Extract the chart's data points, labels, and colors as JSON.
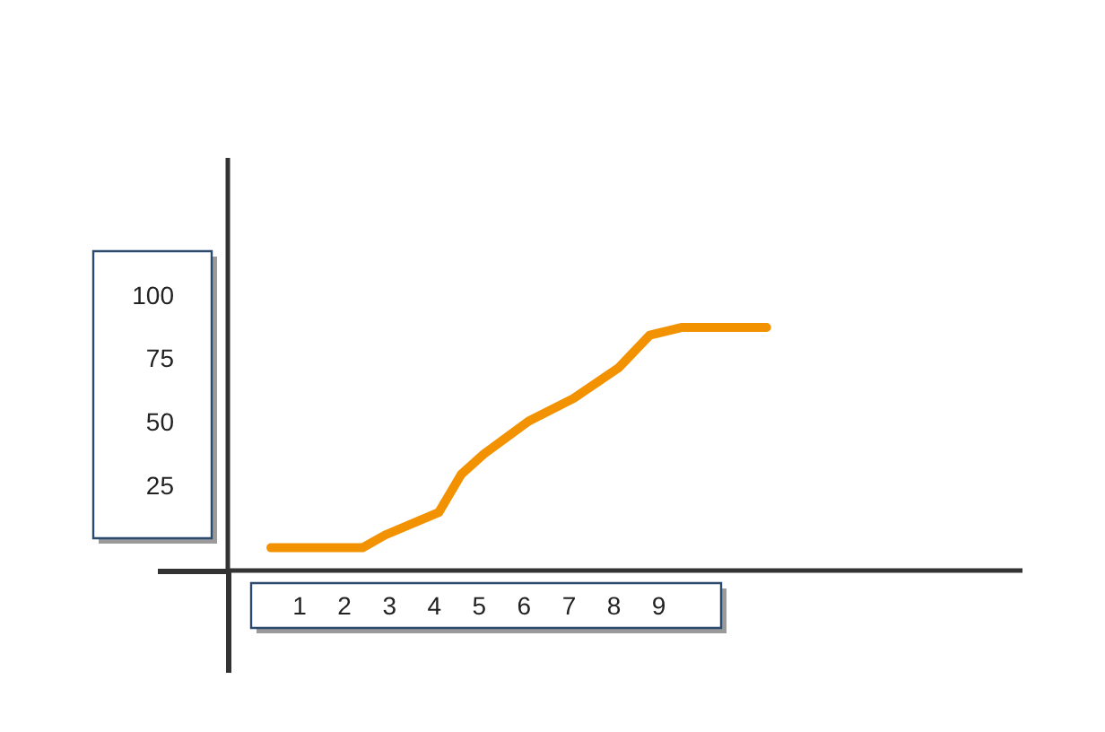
{
  "chart_data": {
    "type": "line",
    "x": [
      0.36,
      2.4,
      2.9,
      4.1,
      4.6,
      5.1,
      6.1,
      7.1,
      8.1,
      8.8,
      9.5,
      11.4
    ],
    "series": [
      {
        "color": "#f39200",
        "values": [
          1,
          1,
          6,
          15,
          30,
          38,
          51,
          60,
          72,
          85,
          88,
          88
        ]
      }
    ],
    "xlim": [
      -0.6,
      17.1
    ],
    "xticks": [
      1,
      2,
      3,
      4,
      5,
      6,
      7,
      8,
      9
    ],
    "ylim": [
      -8,
      155
    ],
    "yticks": [
      25,
      50,
      75,
      100
    ],
    "grid": false,
    "legend": false,
    "marker": "none",
    "line_style": "solid"
  }
}
